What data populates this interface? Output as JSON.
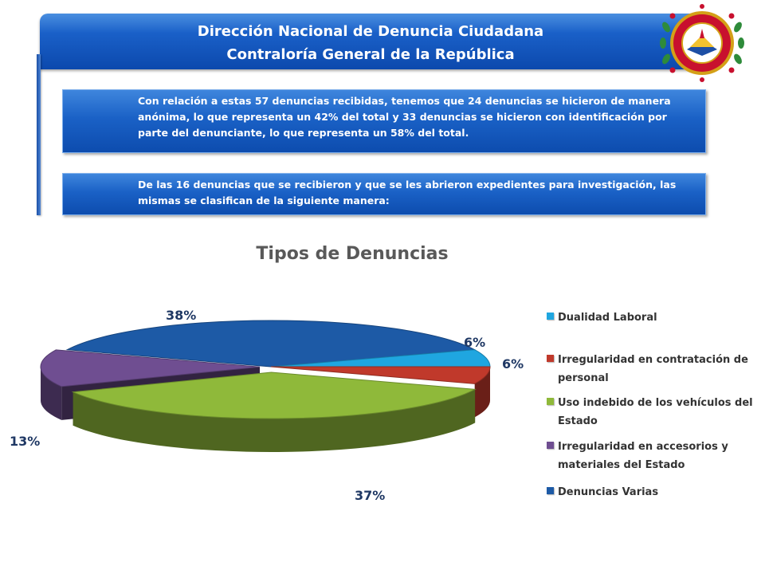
{
  "header": {
    "line1": "Dirección Nacional de Denuncia Ciudadana",
    "line2": "Contraloría General  de la República"
  },
  "paragraphs": {
    "p1": "Con relación a estas 57 denuncias recibidas, tenemos que 24 denuncias se hicieron de manera anónima, lo que representa un 42% del total y 33 denuncias se hicieron con identificación por parte del denunciante, lo que representa un 58% del total.",
    "p2": "De las 16 denuncias que se recibieron y que se les abrieron expedientes para investigación, las mismas se clasifican de la siguiente manera:"
  },
  "chart_data": {
    "type": "pie",
    "title": "Tipos de Denuncias",
    "categories": [
      "Dualidad Laboral",
      "Irregularidad en contratación de personal",
      "Uso indebido de los vehículos del Estado",
      "Irregularidad en accesorios y materiales del Estado",
      "Denuncias Varias"
    ],
    "values": [
      6,
      6,
      37,
      13,
      38
    ],
    "labels": [
      "6%",
      "6%",
      "37%",
      "13%",
      "38%"
    ],
    "colors": [
      "#1fa6e0",
      "#c0392b",
      "#8fb93a",
      "#6f4e91",
      "#1d5aa6"
    ],
    "legend_position": "right",
    "style": "3d"
  }
}
